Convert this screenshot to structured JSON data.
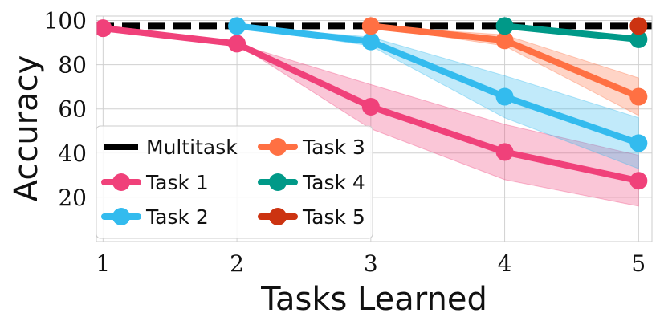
{
  "chart_data": {
    "type": "line",
    "xlabel": "Tasks Learned",
    "ylabel": "Accuracy",
    "x_ticks": [
      "1",
      "2",
      "3",
      "4",
      "5"
    ],
    "y_ticks": [
      "20",
      "40",
      "60",
      "80",
      "100"
    ],
    "xlim": [
      0.95,
      5.1
    ],
    "ylim": [
      0,
      102
    ],
    "grid": true,
    "legend_position": "lower-left",
    "legend_columns": 2,
    "multitask": {
      "name": "Multitask",
      "value": 97.5,
      "color": "#000000",
      "style": "dashed"
    },
    "series": [
      {
        "name": "Task 1",
        "color": "#f0417a",
        "x": [
          1,
          2,
          3,
          4,
          5
        ],
        "y": [
          96.5,
          89.5,
          61,
          40.5,
          27.5
        ],
        "lower": [
          96.5,
          89.5,
          51,
          28,
          16
        ],
        "upper": [
          96.5,
          89.5,
          71,
          53,
          39
        ]
      },
      {
        "name": "Task 2",
        "color": "#33bbee",
        "x": [
          2,
          3,
          4,
          5
        ],
        "y": [
          97.5,
          90.5,
          65.5,
          44.5
        ],
        "lower": [
          97.5,
          88.5,
          56,
          33
        ],
        "upper": [
          97.5,
          92.5,
          75,
          56
        ]
      },
      {
        "name": "Task 3",
        "color": "#ff7043",
        "x": [
          3,
          4,
          5
        ],
        "y": [
          97.5,
          91,
          65.5
        ],
        "lower": [
          97.5,
          88.5,
          57
        ],
        "upper": [
          97.5,
          93.5,
          74
        ]
      },
      {
        "name": "Task 4",
        "color": "#009988",
        "x": [
          4,
          5
        ],
        "y": [
          97.5,
          91.5
        ],
        "lower": [
          97.5,
          90
        ],
        "upper": [
          97.5,
          93
        ]
      },
      {
        "name": "Task 5",
        "color": "#cc3311",
        "x": [
          5
        ],
        "y": [
          97.5
        ],
        "lower": [
          97.5
        ],
        "upper": [
          97.5
        ]
      }
    ]
  }
}
